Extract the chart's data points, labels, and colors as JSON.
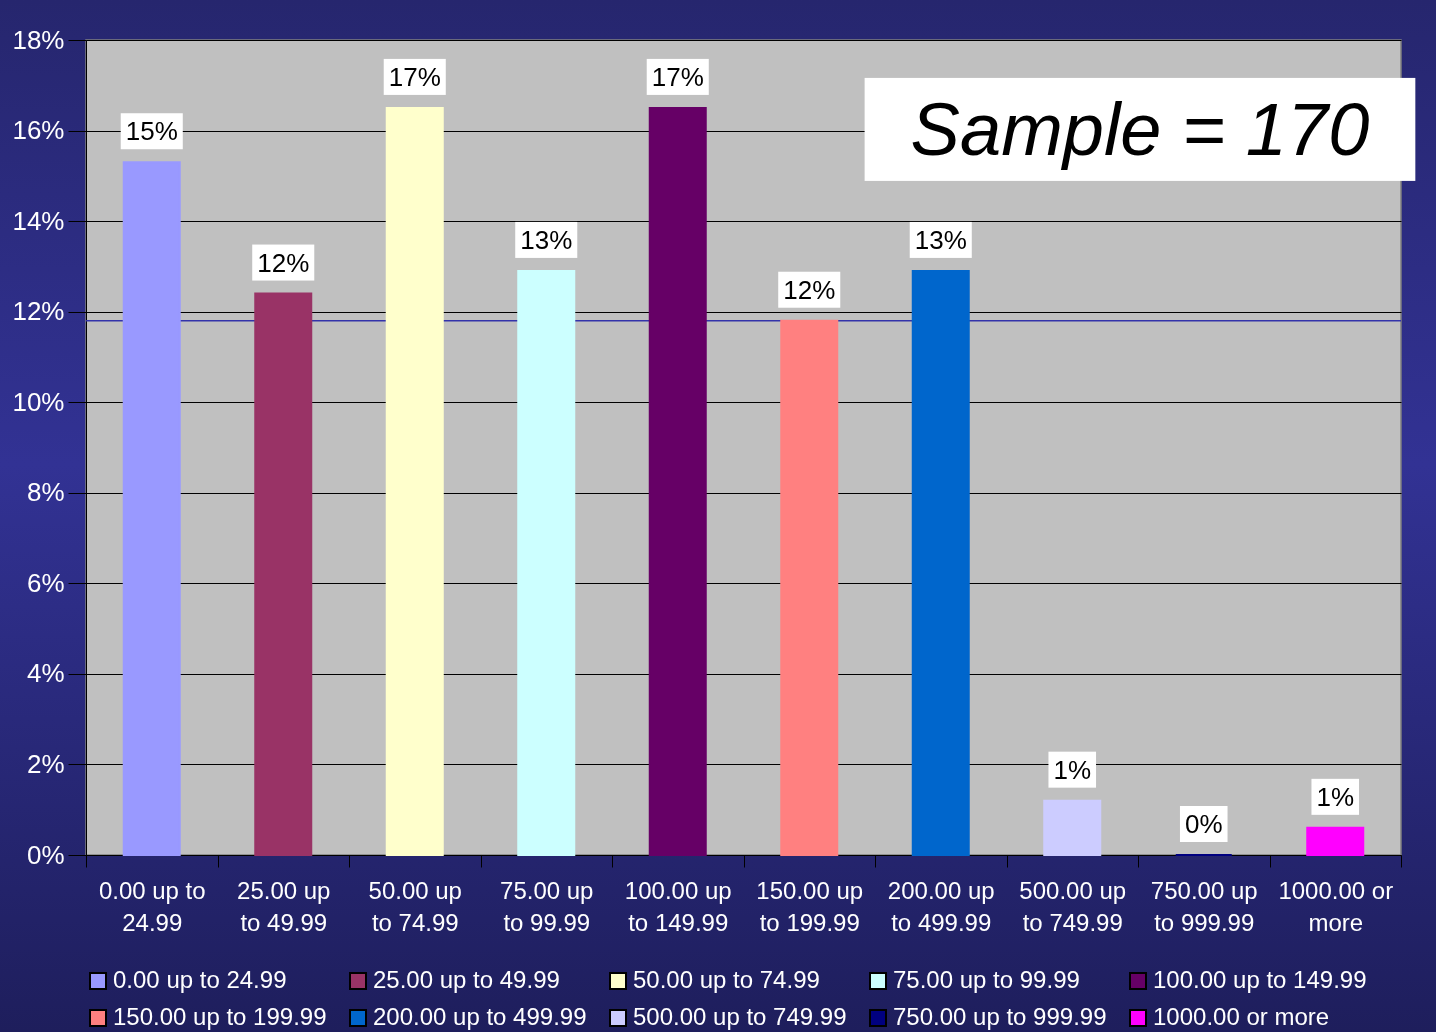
{
  "chart_data": {
    "type": "bar",
    "stacked": true,
    "categories": [
      "0.00 up to 24.99",
      "25.00 up to 49.99",
      "50.00 up to 74.99",
      "75.00 up to 99.99",
      "100.00 up to 149.99",
      "150.00 up to 199.99",
      "200.00 up to 499.99",
      "500.00 up to 749.99",
      "750.00 up to 999.99",
      "1000.00 or more"
    ],
    "series": [
      {
        "name": "0.00 up to 24.99",
        "color": "#9999ff",
        "values": [
          15.3,
          null,
          null,
          null,
          null,
          null,
          null,
          null,
          null,
          null
        ],
        "value_labels": [
          "15%",
          null,
          null,
          null,
          null,
          null,
          null,
          null,
          null,
          null
        ]
      },
      {
        "name": "25.00 up to 49.99",
        "color": "#993366",
        "values": [
          null,
          12.4,
          null,
          null,
          null,
          null,
          null,
          null,
          null,
          null
        ],
        "value_labels": [
          null,
          "12%",
          null,
          null,
          null,
          null,
          null,
          null,
          null,
          null
        ]
      },
      {
        "name": "50.00 up to 74.99",
        "color": "#ffffcc",
        "values": [
          null,
          null,
          16.5,
          null,
          null,
          null,
          null,
          null,
          null,
          null
        ],
        "value_labels": [
          null,
          null,
          "17%",
          null,
          null,
          null,
          null,
          null,
          null,
          null
        ]
      },
      {
        "name": "75.00 up to 99.99",
        "color": "#ccffff",
        "values": [
          null,
          null,
          null,
          12.9,
          null,
          null,
          null,
          null,
          null,
          null
        ],
        "value_labels": [
          null,
          null,
          null,
          "13%",
          null,
          null,
          null,
          null,
          null,
          null
        ]
      },
      {
        "name": "100.00 up to 149.99",
        "color": "#660066",
        "values": [
          null,
          null,
          null,
          null,
          16.5,
          null,
          null,
          null,
          null,
          null
        ],
        "value_labels": [
          null,
          null,
          null,
          null,
          "17%",
          null,
          null,
          null,
          null,
          null
        ]
      },
      {
        "name": "150.00 up to 199.99",
        "color": "#ff8080",
        "values": [
          null,
          null,
          null,
          null,
          null,
          11.8,
          null,
          null,
          null,
          null
        ],
        "value_labels": [
          null,
          null,
          null,
          null,
          null,
          "12%",
          null,
          null,
          null,
          null
        ]
      },
      {
        "name": "200.00 up to 499.99",
        "color": "#0066cc",
        "values": [
          null,
          null,
          null,
          null,
          null,
          null,
          12.9,
          null,
          null,
          null
        ],
        "value_labels": [
          null,
          null,
          null,
          null,
          null,
          null,
          "13%",
          null,
          null,
          null
        ]
      },
      {
        "name": "500.00 up to 749.99",
        "color": "#ccccff",
        "values": [
          null,
          null,
          null,
          null,
          null,
          null,
          null,
          1.2,
          null,
          null
        ],
        "value_labels": [
          null,
          null,
          null,
          null,
          null,
          null,
          null,
          "1%",
          null,
          null
        ]
      },
      {
        "name": "750.00 up to 999.99",
        "color": "#000080",
        "values": [
          null,
          null,
          null,
          null,
          null,
          null,
          null,
          null,
          0,
          null
        ],
        "value_labels": [
          null,
          null,
          null,
          null,
          null,
          null,
          null,
          null,
          "0%",
          null
        ]
      },
      {
        "name": "1000.00 or more",
        "color": "#ff00ff",
        "values": [
          null,
          null,
          null,
          null,
          null,
          null,
          null,
          null,
          null,
          0.6
        ],
        "value_labels": [
          null,
          null,
          null,
          null,
          null,
          null,
          null,
          null,
          null,
          "1%"
        ]
      }
    ],
    "ylim": [
      0,
      18
    ],
    "yticks": [
      {
        "value": 0,
        "label": "0%"
      },
      {
        "value": 2,
        "label": "2%"
      },
      {
        "value": 4,
        "label": "4%"
      },
      {
        "value": 6,
        "label": "6%"
      },
      {
        "value": 8,
        "label": "8%"
      },
      {
        "value": 10,
        "label": "10%"
      },
      {
        "value": 12,
        "label": "12%"
      },
      {
        "value": 14,
        "label": "14%"
      },
      {
        "value": 16,
        "label": "16%"
      },
      {
        "value": 18,
        "label": "18%"
      }
    ],
    "grid": "y",
    "legend": "bottom",
    "ref_lines": [
      {
        "axis": "y",
        "value": 11.8,
        "color": "#3333aa"
      }
    ],
    "annotations": [
      "Sample = 170"
    ]
  }
}
